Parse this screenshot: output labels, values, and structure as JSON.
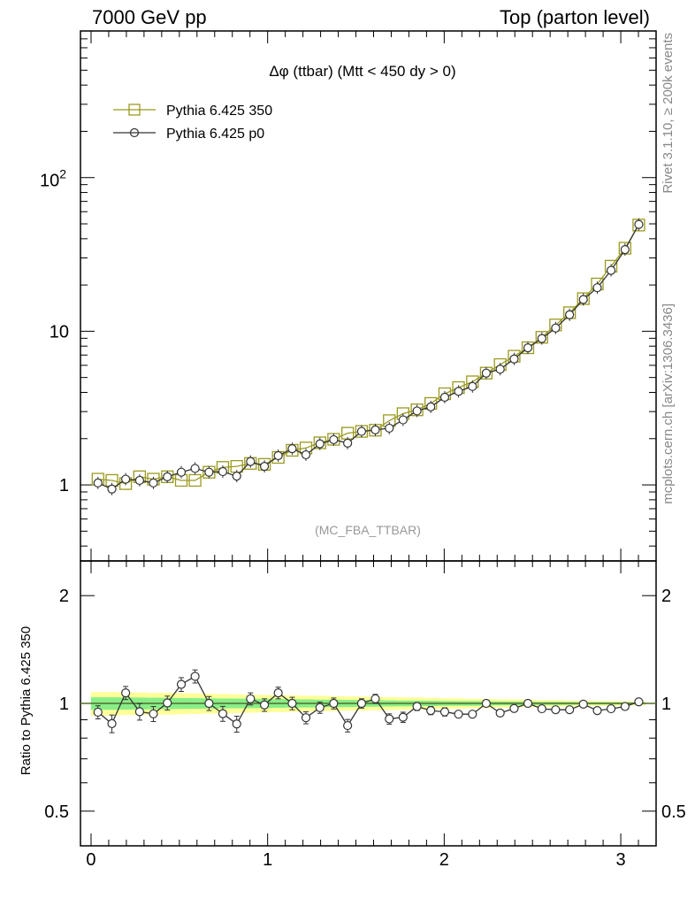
{
  "header": {
    "left": "7000 GeV pp",
    "right": "Top (parton level)"
  },
  "side": {
    "top": "Rivet 3.1.10, ≥ 200k events",
    "bottom": "mcplots.cern.ch [arXiv:1306.3436]"
  },
  "colors": {
    "ref": "#9a9a1f",
    "mc": "#333333",
    "band_outer": "#ffff99",
    "band_inner": "#88ee88"
  },
  "chart_data": [
    {
      "type": "line",
      "title": "Δφ (ttbar) (Mtt < 450 dy > 0)",
      "watermark": "(MC_FBA_TTBAR)",
      "yscale": "log",
      "xlim": [
        -0.06,
        3.2
      ],
      "ylim": [
        0.32,
        900
      ],
      "ytick_labels": [
        "1",
        "10",
        "10^2"
      ],
      "legend_position": "top-left",
      "x": [
        0.039,
        0.118,
        0.196,
        0.275,
        0.353,
        0.432,
        0.511,
        0.589,
        0.668,
        0.746,
        0.825,
        0.903,
        0.982,
        1.06,
        1.139,
        1.217,
        1.296,
        1.374,
        1.453,
        1.532,
        1.61,
        1.689,
        1.767,
        1.846,
        1.924,
        2.003,
        2.081,
        2.16,
        2.238,
        2.317,
        2.396,
        2.474,
        2.553,
        2.631,
        2.71,
        2.788,
        2.867,
        2.945,
        3.024,
        3.102
      ],
      "series": [
        {
          "name": "Pythia 6.425 350",
          "marker": "square",
          "values": [
            1.09,
            1.07,
            1.02,
            1.13,
            1.09,
            1.13,
            1.07,
            1.07,
            1.21,
            1.3,
            1.32,
            1.38,
            1.36,
            1.51,
            1.68,
            1.74,
            1.88,
            1.98,
            2.17,
            2.23,
            2.27,
            2.62,
            2.91,
            3.08,
            3.39,
            3.92,
            4.3,
            4.69,
            5.34,
            6.07,
            6.88,
            7.81,
            9.13,
            10.99,
            13.2,
            16.3,
            20.3,
            26.5,
            34.7,
            49.1
          ]
        },
        {
          "name": "Pythia 6.425 p0",
          "marker": "circle",
          "values": [
            1.03,
            0.94,
            1.09,
            1.07,
            1.03,
            1.13,
            1.21,
            1.28,
            1.21,
            1.22,
            1.14,
            1.42,
            1.32,
            1.55,
            1.72,
            1.57,
            1.85,
            1.97,
            1.87,
            2.23,
            2.28,
            2.34,
            2.65,
            3.03,
            3.22,
            3.72,
            4.06,
            4.37,
            5.34,
            5.66,
            6.6,
            7.8,
            8.97,
            10.5,
            12.8,
            16.1,
            19.2,
            24.9,
            34.0,
            49.6
          ]
        }
      ]
    },
    {
      "type": "line",
      "ylabel": "Ratio to Pythia 6.425 350",
      "yscale": "log",
      "xlim": [
        -0.06,
        3.2
      ],
      "ylim": [
        0.4,
        2.5
      ],
      "ytick_labels": [
        "0.5",
        "1",
        "2"
      ],
      "xtick_labels": [
        "0",
        "1",
        "2",
        "3"
      ],
      "x": [
        0.039,
        0.118,
        0.196,
        0.275,
        0.353,
        0.432,
        0.511,
        0.589,
        0.668,
        0.746,
        0.825,
        0.903,
        0.982,
        1.06,
        1.139,
        1.217,
        1.296,
        1.374,
        1.453,
        1.532,
        1.61,
        1.689,
        1.767,
        1.846,
        1.924,
        2.003,
        2.081,
        2.16,
        2.238,
        2.317,
        2.396,
        2.474,
        2.553,
        2.631,
        2.71,
        2.788,
        2.867,
        2.945,
        3.024,
        3.102
      ],
      "series": [
        {
          "name": "Pythia 6.425 p0",
          "values": [
            0.945,
            0.878,
            1.07,
            0.948,
            0.935,
            1.003,
            1.13,
            1.19,
            1.0,
            0.936,
            0.876,
            1.03,
            0.99,
            1.07,
            1.0,
            0.912,
            0.973,
            1.0,
            0.867,
            1.0,
            1.03,
            0.905,
            0.915,
            0.98,
            0.955,
            0.947,
            0.933,
            0.933,
            1.0,
            0.94,
            0.968,
            1.0,
            0.966,
            0.96,
            0.96,
            0.995,
            0.955,
            0.966,
            0.98,
            1.01
          ],
          "errors": [
            0.04,
            0.05,
            0.045,
            0.05,
            0.045,
            0.045,
            0.05,
            0.05,
            0.045,
            0.045,
            0.045,
            0.04,
            0.04,
            0.04,
            0.04,
            0.035,
            0.035,
            0.035,
            0.035,
            0.03,
            0.03,
            0.03,
            0.03,
            0.025,
            0.025,
            0.025,
            0.02,
            0.02,
            0.02,
            0.015,
            0.015,
            0.015,
            0.015,
            0.01,
            0.01,
            0.01,
            0.01,
            0.01,
            0.01,
            0.01
          ]
        }
      ],
      "band_outer_halfwidth": [
        0.075,
        0.075,
        0.072,
        0.072,
        0.07,
        0.07,
        0.068,
        0.066,
        0.064,
        0.062,
        0.06,
        0.058,
        0.056,
        0.055,
        0.053,
        0.051,
        0.05,
        0.048,
        0.046,
        0.045,
        0.043,
        0.041,
        0.04,
        0.038,
        0.036,
        0.034,
        0.033,
        0.031,
        0.029,
        0.027,
        0.026,
        0.024,
        0.022,
        0.021,
        0.019,
        0.017,
        0.016,
        0.015,
        0.014,
        0.013
      ],
      "band_inner_halfwidth": [
        0.04,
        0.04,
        0.039,
        0.038,
        0.037,
        0.036,
        0.035,
        0.034,
        0.033,
        0.032,
        0.031,
        0.03,
        0.029,
        0.028,
        0.027,
        0.026,
        0.025,
        0.024,
        0.023,
        0.022,
        0.021,
        0.02,
        0.019,
        0.018,
        0.017,
        0.016,
        0.015,
        0.015,
        0.014,
        0.013,
        0.012,
        0.011,
        0.01,
        0.01,
        0.009,
        0.008,
        0.008,
        0.007,
        0.007,
        0.006
      ]
    }
  ]
}
